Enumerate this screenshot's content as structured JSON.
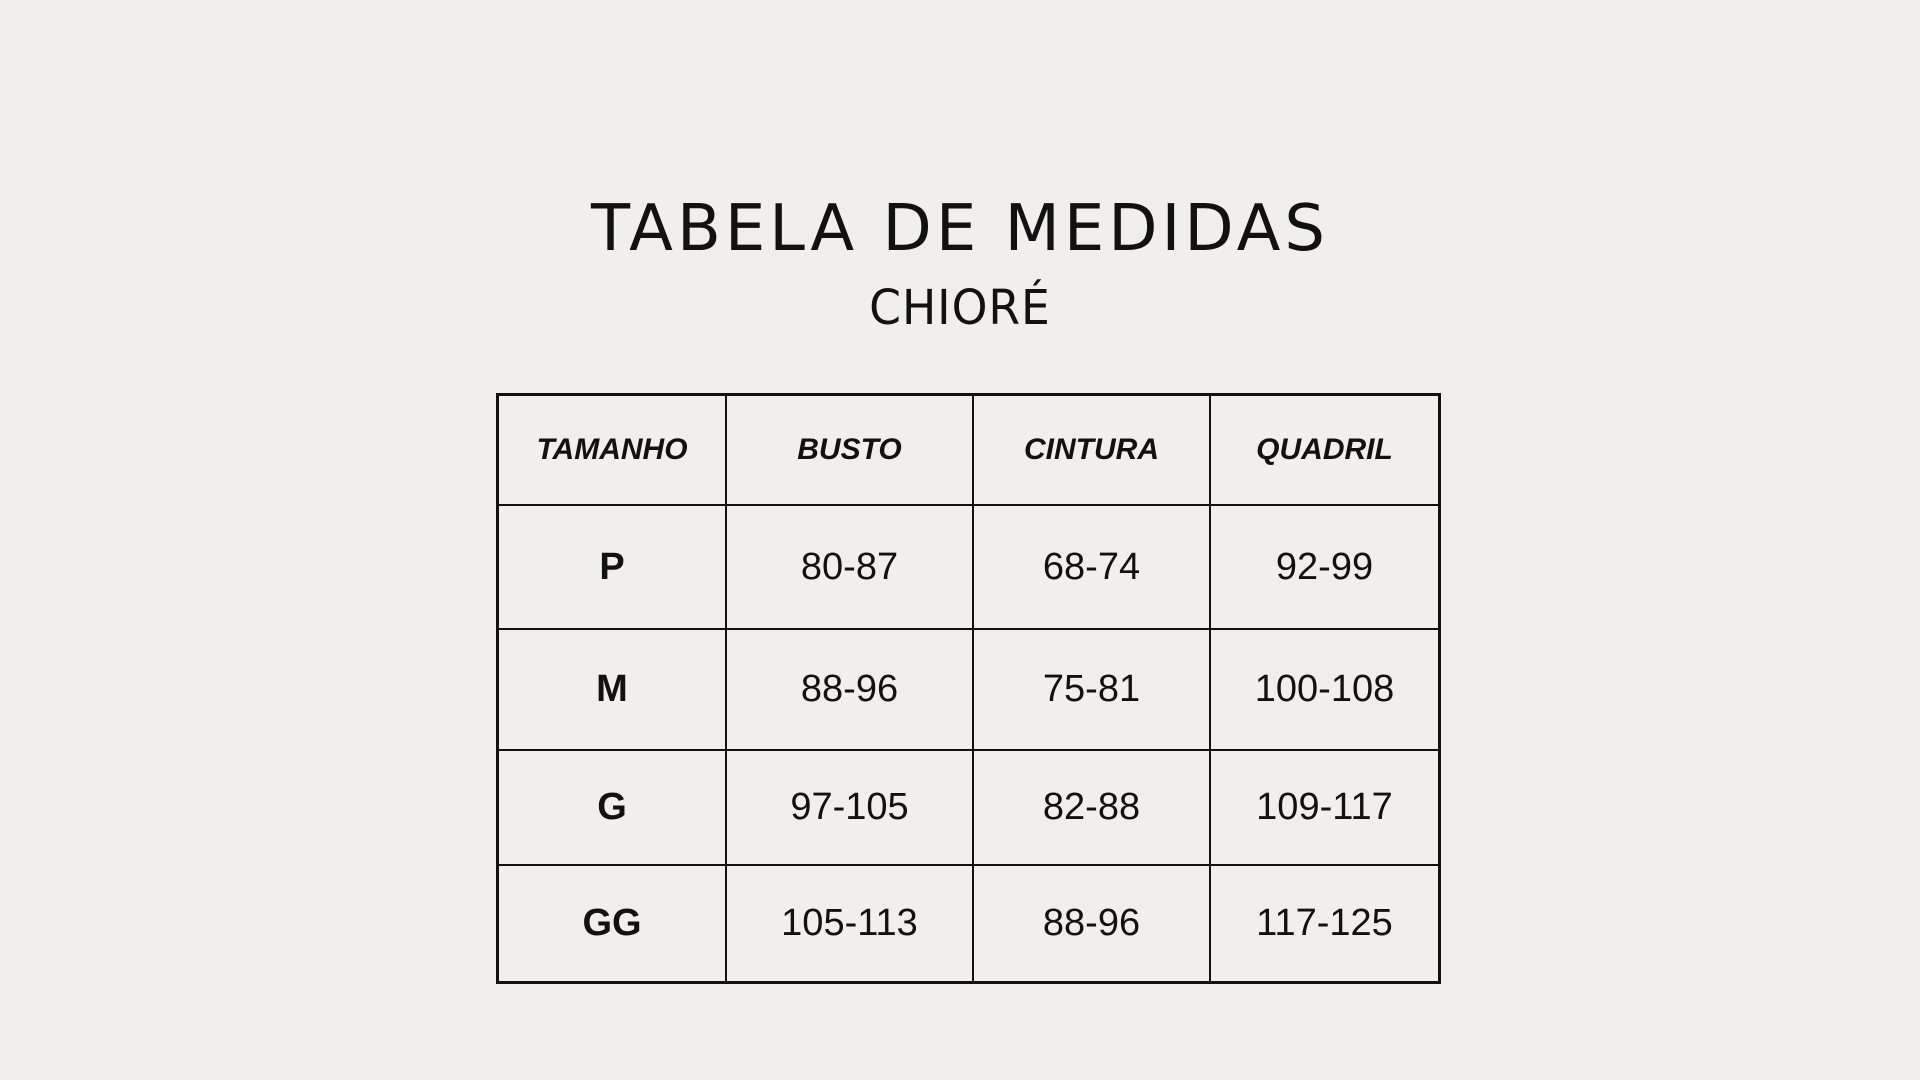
{
  "title": "TABELA DE MEDIDAS",
  "brand": "CHIORÉ",
  "table": {
    "headers": [
      "TAMANHO",
      "BUSTO",
      "CINTURA",
      "QUADRIL"
    ],
    "rows": [
      [
        "P",
        "80-87",
        "68-74",
        "92-99"
      ],
      [
        "M",
        "88-96",
        "75-81",
        "100-108"
      ],
      [
        "G",
        "97-105",
        "82-88",
        "109-117"
      ],
      [
        "GG",
        "105-113",
        "88-96",
        "117-125"
      ]
    ]
  },
  "colors": {
    "background": "#f0efeb",
    "text": "#111111"
  }
}
